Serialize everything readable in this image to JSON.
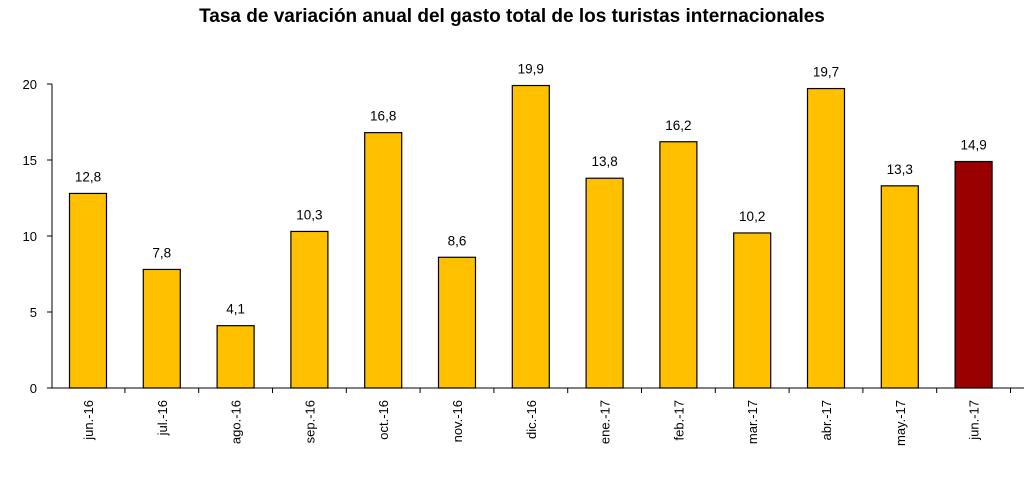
{
  "chart_data": {
    "type": "bar",
    "title": "Tasa de variación anual del gasto total de los turistas internacionales",
    "categories": [
      "jun.-16",
      "jul.-16",
      "ago.-16",
      "sep.-16",
      "oct.-16",
      "nov.-16",
      "dic.-16",
      "ene.-17",
      "feb.-17",
      "mar.-17",
      "abr.-17",
      "may.-17",
      "jun.-17"
    ],
    "values": [
      12.8,
      7.8,
      4.1,
      10.3,
      16.8,
      8.6,
      19.9,
      13.8,
      16.2,
      10.2,
      19.7,
      13.3,
      14.9
    ],
    "data_labels": [
      "12,8",
      "7,8",
      "4,1",
      "10,3",
      "16,8",
      "8,6",
      "19,9",
      "13,8",
      "16,2",
      "10,2",
      "19,7",
      "13,3",
      "14,9"
    ],
    "yticks": [
      0,
      5,
      10,
      15,
      20
    ],
    "ylim": [
      0,
      20
    ],
    "xlabel": "",
    "ylabel": "",
    "grid": false,
    "colors": {
      "bar": "#FFC000",
      "highlight_bar": "#990000",
      "bar_stroke": "#000000"
    },
    "highlight_category": "jun.-17"
  }
}
